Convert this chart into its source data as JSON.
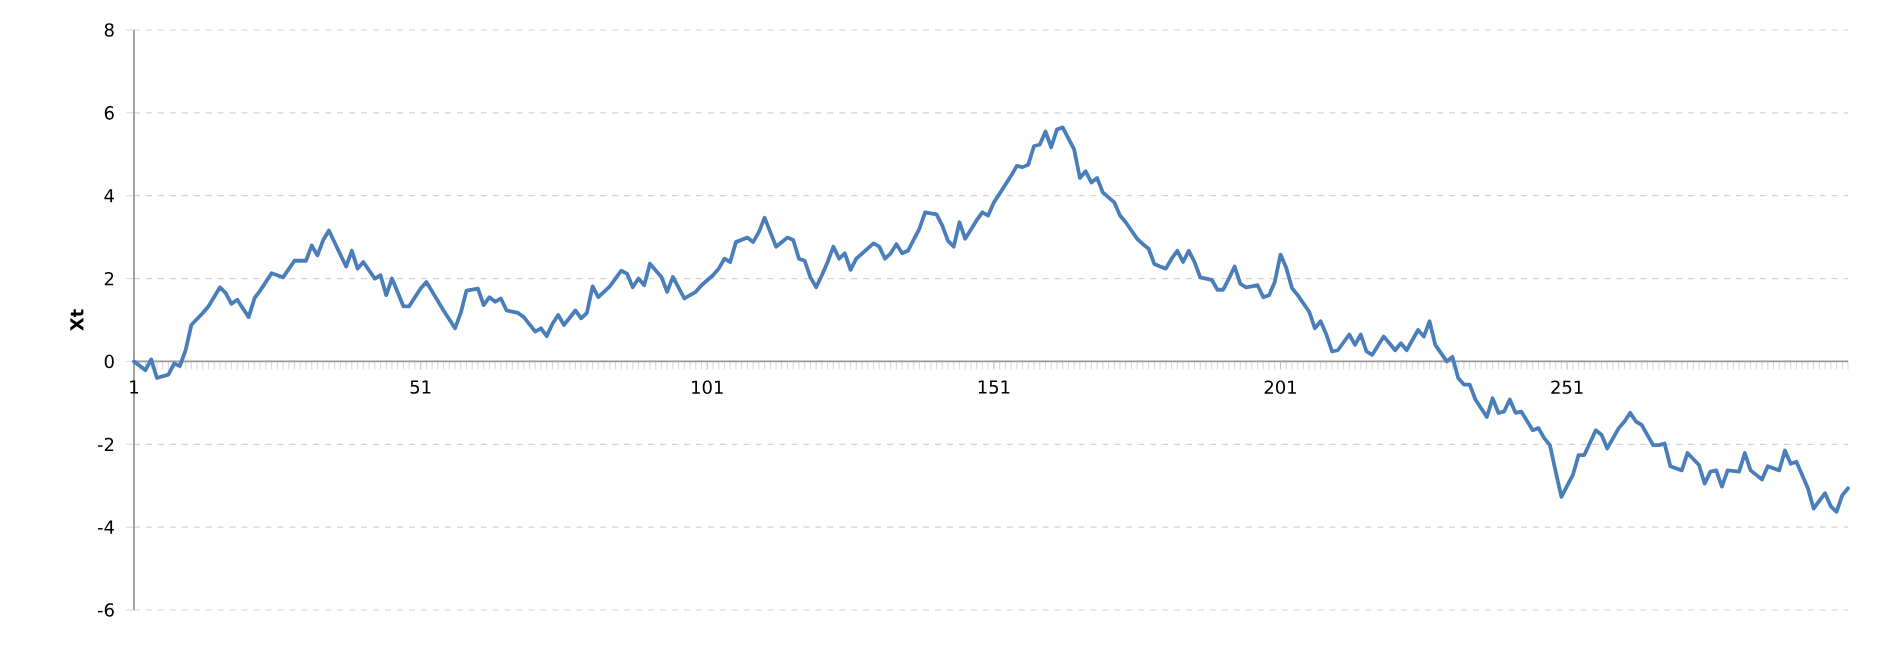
{
  "chart_data": {
    "type": "line",
    "ylabel": "Xt",
    "x": [
      1,
      3,
      4,
      5,
      7,
      8,
      9,
      10,
      11,
      13,
      14,
      16,
      17,
      18,
      19,
      21,
      22,
      23,
      25,
      27,
      29,
      31,
      32,
      33,
      34,
      35,
      38,
      39,
      40,
      41,
      43,
      44,
      45,
      46,
      48,
      49,
      51,
      52,
      55,
      57,
      58,
      59,
      61,
      62,
      63,
      64,
      65,
      66,
      68,
      69,
      71,
      72,
      73,
      74,
      75,
      76,
      78,
      79,
      80,
      81,
      82,
      84,
      86,
      87,
      88,
      89,
      90,
      91,
      93,
      94,
      95,
      97,
      99,
      100,
      102,
      103,
      104,
      105,
      106,
      108,
      109,
      110,
      111,
      112,
      113,
      115,
      116,
      117,
      118,
      119,
      120,
      121,
      122,
      123,
      124,
      125,
      126,
      127,
      130,
      131,
      132,
      133,
      134,
      135,
      136,
      138,
      139,
      141,
      142,
      143,
      144,
      145,
      146,
      148,
      149,
      150,
      151,
      152,
      154,
      155,
      156,
      157,
      158,
      159,
      160,
      161,
      162,
      163,
      165,
      166,
      167,
      168,
      169,
      170,
      172,
      173,
      174,
      176,
      177,
      178,
      179,
      180,
      181,
      182,
      183,
      184,
      185,
      186,
      187,
      189,
      190,
      191,
      192,
      193,
      194,
      195,
      196,
      197,
      198,
      199,
      200,
      201,
      202,
      203,
      204,
      206,
      207,
      208,
      209,
      210,
      211,
      213,
      214,
      215,
      216,
      217,
      219,
      220,
      221,
      222,
      223,
      225,
      226,
      227,
      228,
      230,
      231,
      232,
      233,
      234,
      235,
      237,
      238,
      239,
      240,
      241,
      242,
      243,
      245,
      246,
      247,
      248,
      249,
      250,
      252,
      253,
      254,
      256,
      257,
      258,
      260,
      261,
      262,
      263,
      264,
      266,
      267,
      268,
      269,
      271,
      272,
      274,
      275,
      276,
      277,
      278,
      279,
      281,
      282,
      283,
      285,
      286,
      288,
      289,
      290,
      291,
      293,
      294,
      296,
      297,
      298,
      299,
      300
    ],
    "series": [
      {
        "color": "#4a7ebb",
        "values": [
          0,
          -0.21,
          0.05,
          -0.4,
          -0.32,
          -0.05,
          -0.11,
          0.27,
          0.88,
          1.17,
          1.33,
          1.79,
          1.65,
          1.39,
          1.49,
          1.07,
          1.52,
          1.71,
          2.13,
          2.03,
          2.43,
          2.43,
          2.8,
          2.56,
          2.93,
          3.16,
          2.29,
          2.67,
          2.24,
          2.4,
          2.0,
          2.08,
          1.6,
          2.0,
          1.33,
          1.33,
          1.76,
          1.92,
          1.23,
          0.8,
          1.17,
          1.71,
          1.76,
          1.36,
          1.55,
          1.44,
          1.52,
          1.23,
          1.17,
          1.07,
          0.72,
          0.8,
          0.61,
          0.91,
          1.12,
          0.88,
          1.23,
          1.04,
          1.17,
          1.81,
          1.55,
          1.81,
          2.19,
          2.12,
          1.79,
          2.0,
          1.84,
          2.36,
          2.04,
          1.68,
          2.04,
          1.52,
          1.68,
          1.84,
          2.08,
          2.24,
          2.48,
          2.4,
          2.88,
          2.99,
          2.88,
          3.12,
          3.47,
          3.12,
          2.77,
          2.99,
          2.93,
          2.48,
          2.43,
          2.03,
          1.79,
          2.08,
          2.4,
          2.77,
          2.48,
          2.61,
          2.21,
          2.48,
          2.85,
          2.77,
          2.48,
          2.61,
          2.83,
          2.61,
          2.67,
          3.2,
          3.6,
          3.55,
          3.28,
          2.91,
          2.77,
          3.36,
          2.96,
          3.41,
          3.6,
          3.52,
          3.84,
          4.05,
          4.48,
          4.72,
          4.69,
          4.75,
          5.2,
          5.23,
          5.55,
          5.17,
          5.6,
          5.65,
          5.12,
          4.43,
          4.59,
          4.32,
          4.43,
          4.08,
          3.84,
          3.52,
          3.36,
          2.96,
          2.83,
          2.72,
          2.35,
          2.29,
          2.24,
          2.48,
          2.67,
          2.4,
          2.67,
          2.4,
          2.03,
          1.97,
          1.73,
          1.73,
          2.0,
          2.29,
          1.87,
          1.79,
          1.81,
          1.84,
          1.55,
          1.6,
          1.92,
          2.58,
          2.26,
          1.77,
          1.6,
          1.2,
          0.8,
          0.97,
          0.65,
          0.24,
          0.27,
          0.65,
          0.4,
          0.65,
          0.24,
          0.16,
          0.6,
          0.44,
          0.27,
          0.44,
          0.27,
          0.76,
          0.6,
          0.97,
          0.4,
          0.0,
          0.11,
          -0.4,
          -0.56,
          -0.56,
          -0.92,
          -1.34,
          -0.89,
          -1.24,
          -1.21,
          -0.92,
          -1.24,
          -1.21,
          -1.66,
          -1.61,
          -1.85,
          -2.02,
          -2.66,
          -3.27,
          -2.74,
          -2.26,
          -2.26,
          -1.66,
          -1.77,
          -2.1,
          -1.61,
          -1.45,
          -1.24,
          -1.45,
          -1.53,
          -2.02,
          -2.02,
          -1.98,
          -2.53,
          -2.63,
          -2.21,
          -2.5,
          -2.95,
          -2.66,
          -2.63,
          -3.02,
          -2.63,
          -2.66,
          -2.21,
          -2.63,
          -2.85,
          -2.53,
          -2.63,
          -2.15,
          -2.47,
          -2.42,
          -3.06,
          -3.55,
          -3.18,
          -3.5,
          -3.63,
          -3.23,
          -3.06
        ]
      }
    ],
    "xlim": [
      1,
      300
    ],
    "ylim": [
      -6,
      8
    ],
    "xticks": [
      1,
      51,
      101,
      151,
      201,
      251
    ],
    "yticks": [
      -6,
      -4,
      -2,
      0,
      2,
      4,
      6,
      8
    ],
    "grid": "y",
    "line_style": "solid"
  }
}
